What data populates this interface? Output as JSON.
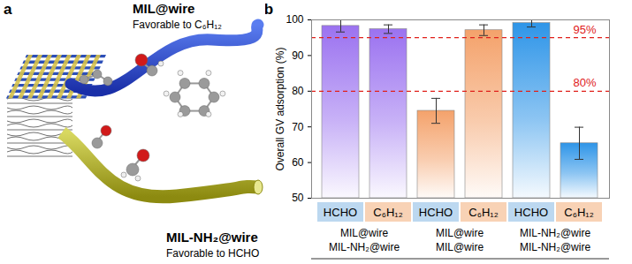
{
  "illustration": {
    "panel_label": "a",
    "labels": [
      {
        "title": "MIL@wire",
        "subtitle": "Favorable to C₆H₁₂"
      },
      {
        "title": "MIL-NH₂@wire",
        "subtitle": "Favorable to HCHO"
      }
    ]
  },
  "chart_data": {
    "type": "bar",
    "title": "b",
    "y_label": "Overall GV adsorption (%)",
    "categories": [
      "HCHO",
      "C₆H₁₂",
      "HCHO",
      "C₆H₁₂",
      "HCHO",
      "C₆H₁₂"
    ],
    "values": [
      98.3,
      97.4,
      74.5,
      97.1,
      99.1,
      65.4
    ],
    "errors": [
      1.7,
      1.2,
      3.5,
      1.5,
      1.1,
      4.5
    ],
    "colors": [
      "#9b72f0",
      "#9b72f0",
      "#f4a26b",
      "#f4a26b",
      "#2e95e8",
      "#2e95e8"
    ],
    "groups": [
      {
        "labels": [
          "MIL@wire",
          "MIL-NH₂@wire"
        ],
        "size": 2
      },
      {
        "labels": [
          "MIL@wire",
          "MIL@wire"
        ],
        "size": 2
      },
      {
        "labels": [
          "MIL-NH₂@wire",
          "MIL-NH₂@wire"
        ],
        "size": 2
      }
    ],
    "annotations": [
      {
        "value": 95,
        "label": "95%"
      },
      {
        "value": 80,
        "label": "80%"
      }
    ],
    "ylim": [
      50,
      100
    ],
    "yticks": [
      50,
      60,
      70,
      80,
      90,
      100
    ]
  }
}
